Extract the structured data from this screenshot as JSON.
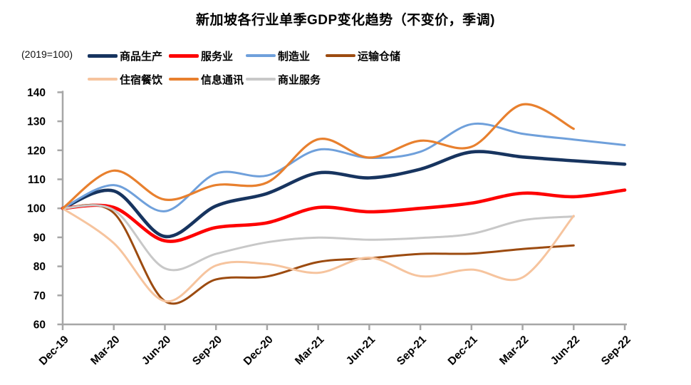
{
  "title": "新加坡各行业单季GDP变化趋势（不变价，季调)",
  "unit_label": "(2019=100)",
  "chart_data": {
    "type": "line",
    "title": "新加坡各行业单季GDP变化趋势（不变价，季调)",
    "ylabel": "(2019=100)",
    "ylim": [
      60,
      140
    ],
    "ytick_step": 10,
    "grid": false,
    "legend_position": "top",
    "x_labels": [
      "Dec-19",
      "Mar-20",
      "Jun-20",
      "Sep-20",
      "Dec-20",
      "Mar-21",
      "Jun-21",
      "Sep-21",
      "Dec-21",
      "Mar-22",
      "Jun-22",
      "Sep-22"
    ],
    "series": [
      {
        "id": "goods-producing",
        "name": "商品生产",
        "color": "#17345F",
        "line_width": 4.6,
        "values": [
          100,
          106,
          90.3,
          100.8,
          105.1,
          112.2,
          110.5,
          113.5,
          119.4,
          117.7,
          116.4,
          115.2
        ]
      },
      {
        "id": "services",
        "name": "服务业",
        "color": "#FE0000",
        "line_width": 4.6,
        "values": [
          100,
          100.3,
          88.8,
          93.4,
          95,
          100.3,
          98.8,
          100,
          101.8,
          105.2,
          104,
          106.3
        ]
      },
      {
        "id": "manufacturing",
        "name": "制造业",
        "color": "#6FA0DB",
        "line_width": 3,
        "values": [
          100,
          108,
          99,
          112,
          111.3,
          120.2,
          117.4,
          119.5,
          129,
          125.7,
          123.7,
          121.8
        ]
      },
      {
        "id": "transport-storage",
        "name": "运输仓储",
        "color": "#9C4B10",
        "line_width": 3,
        "values": [
          100,
          98.4,
          68,
          75.5,
          76.5,
          81.5,
          82.8,
          84.3,
          84.4,
          86,
          87.2,
          null
        ]
      },
      {
        "id": "accommodation-food",
        "name": "住宿餐饮",
        "color": "#F6C49E",
        "line_width": 3,
        "values": [
          100,
          88,
          68,
          80.3,
          80.8,
          77.8,
          83,
          76.6,
          78.9,
          76.2,
          97.4,
          null
        ]
      },
      {
        "id": "infocomm",
        "name": "信息通讯",
        "color": "#E8802E",
        "line_width": 3.2,
        "values": [
          100,
          113,
          103,
          108,
          108.9,
          123.8,
          117.5,
          123.3,
          121.2,
          135.8,
          127.4,
          null
        ]
      },
      {
        "id": "business-services",
        "name": "商业服务",
        "color": "#C8C8C8",
        "line_width": 3,
        "values": [
          100,
          99.4,
          79.3,
          84.3,
          88.3,
          89.9,
          89.2,
          89.8,
          91.2,
          95.9,
          97.2,
          null
        ]
      }
    ]
  }
}
